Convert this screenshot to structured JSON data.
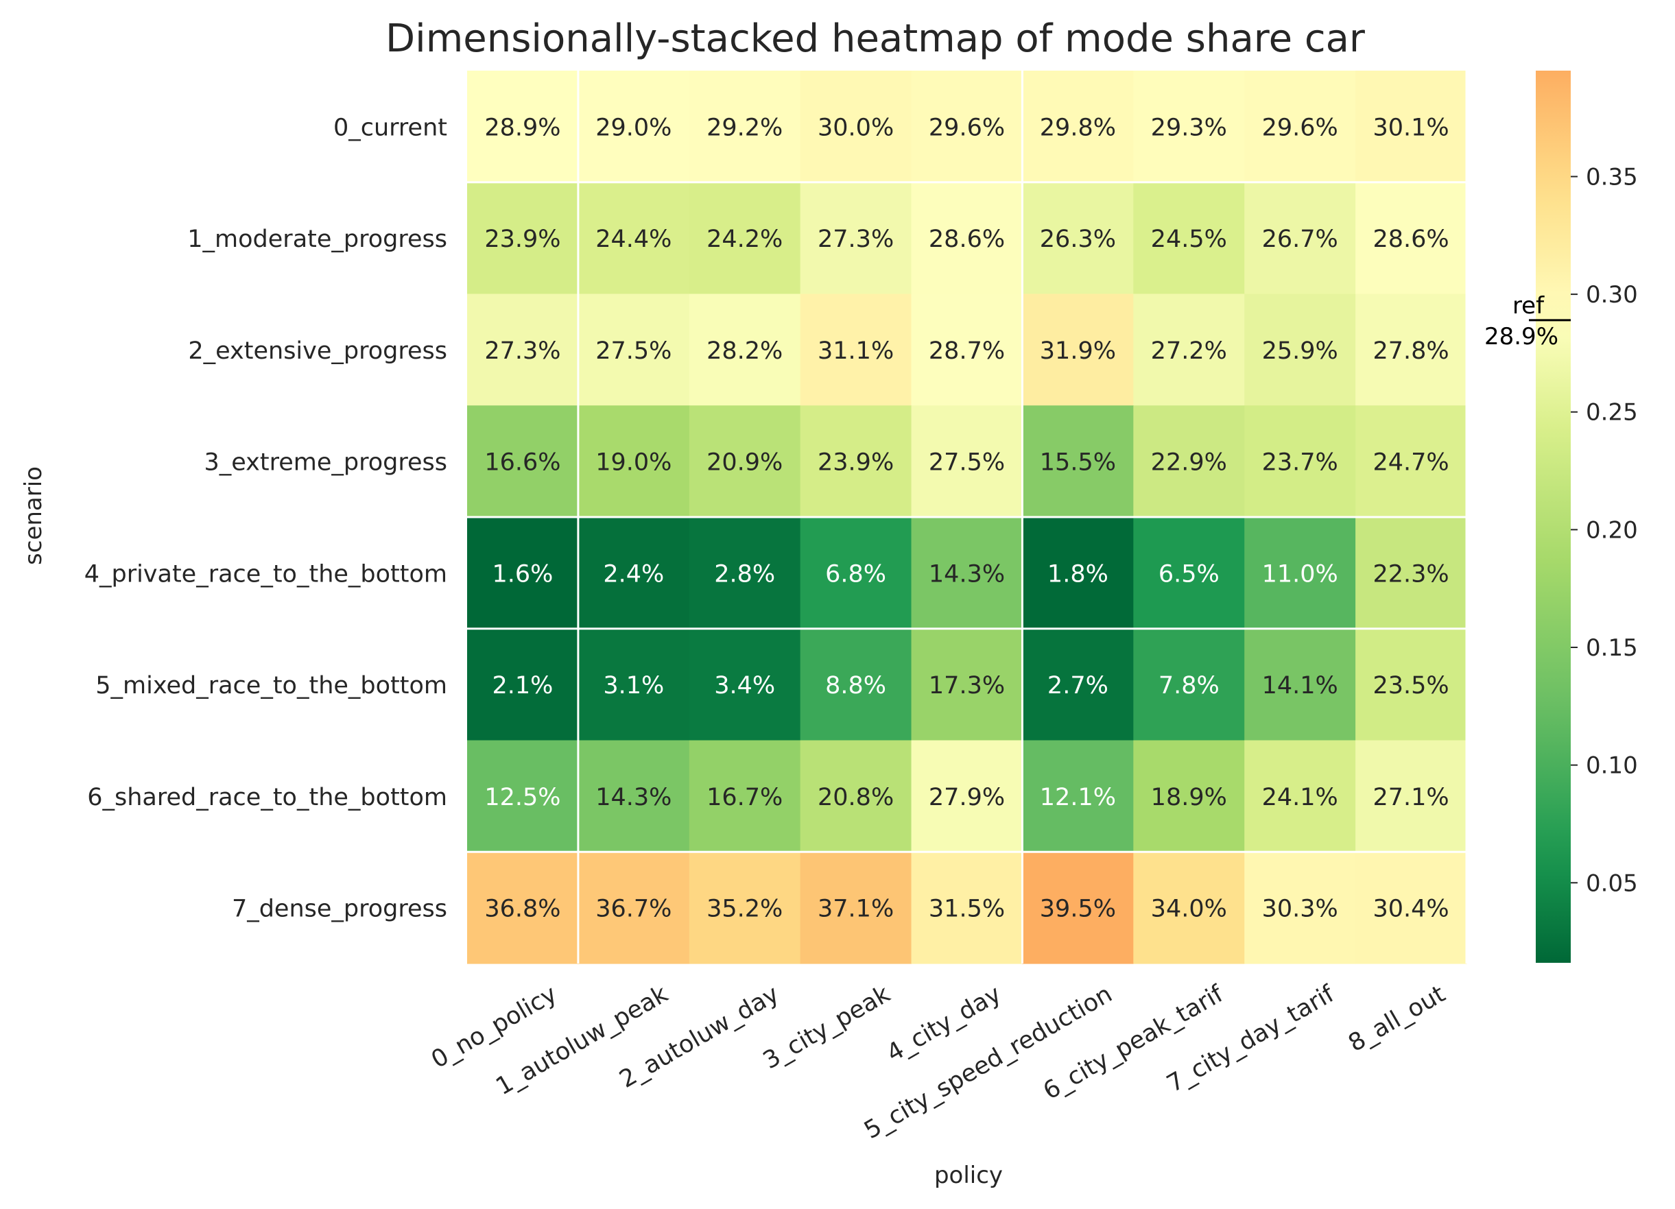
{
  "chart_data": {
    "type": "heatmap",
    "title": "Dimensionally-stacked heatmap of mode share car",
    "xlabel": "policy",
    "ylabel": "scenario",
    "x_categories": [
      "0_no_policy",
      "1_autoluw_peak",
      "2_autoluw_day",
      "3_city_peak",
      "4_city_day",
      "5_city_speed_reduction",
      "6_city_peak_tarif",
      "7_city_day_tarif",
      "8_all_out"
    ],
    "y_categories": [
      "0_current",
      "1_moderate_progress",
      "2_extensive_progress",
      "3_extreme_progress",
      "4_private_race_to_the_bottom",
      "5_mixed_race_to_the_bottom",
      "6_shared_race_to_the_bottom",
      "7_dense_progress"
    ],
    "values": [
      [
        0.289,
        0.29,
        0.292,
        0.3,
        0.296,
        0.298,
        0.293,
        0.296,
        0.301
      ],
      [
        0.239,
        0.244,
        0.242,
        0.273,
        0.286,
        0.263,
        0.245,
        0.267,
        0.286
      ],
      [
        0.273,
        0.275,
        0.282,
        0.311,
        0.287,
        0.319,
        0.272,
        0.259,
        0.278
      ],
      [
        0.166,
        0.19,
        0.209,
        0.239,
        0.275,
        0.155,
        0.229,
        0.237,
        0.247
      ],
      [
        0.016,
        0.024,
        0.028,
        0.068,
        0.143,
        0.018,
        0.065,
        0.11,
        0.223
      ],
      [
        0.021,
        0.031,
        0.034,
        0.088,
        0.173,
        0.027,
        0.078,
        0.141,
        0.235
      ],
      [
        0.125,
        0.143,
        0.167,
        0.208,
        0.279,
        0.121,
        0.189,
        0.241,
        0.271
      ],
      [
        0.368,
        0.367,
        0.352,
        0.371,
        0.315,
        0.395,
        0.34,
        0.303,
        0.304
      ]
    ],
    "cell_labels": [
      [
        "28.9%",
        "29.0%",
        "29.2%",
        "30.0%",
        "29.6%",
        "29.8%",
        "29.3%",
        "29.6%",
        "30.1%"
      ],
      [
        "23.9%",
        "24.4%",
        "24.2%",
        "27.3%",
        "28.6%",
        "26.3%",
        "24.5%",
        "26.7%",
        "28.6%"
      ],
      [
        "27.3%",
        "27.5%",
        "28.2%",
        "31.1%",
        "28.7%",
        "31.9%",
        "27.2%",
        "25.9%",
        "27.8%"
      ],
      [
        "16.6%",
        "19.0%",
        "20.9%",
        "23.9%",
        "27.5%",
        "15.5%",
        "22.9%",
        "23.7%",
        "24.7%"
      ],
      [
        "1.6%",
        "2.4%",
        "2.8%",
        "6.8%",
        "14.3%",
        "1.8%",
        "6.5%",
        "11.0%",
        "22.3%"
      ],
      [
        "2.1%",
        "3.1%",
        "3.4%",
        "8.8%",
        "17.3%",
        "2.7%",
        "7.8%",
        "14.1%",
        "23.5%"
      ],
      [
        "12.5%",
        "14.3%",
        "16.7%",
        "20.8%",
        "27.9%",
        "12.1%",
        "18.9%",
        "24.1%",
        "27.1%"
      ],
      [
        "36.8%",
        "36.7%",
        "35.2%",
        "37.1%",
        "31.5%",
        "39.5%",
        "34.0%",
        "30.3%",
        "30.4%"
      ]
    ],
    "vertical_group_separators_after_columns": [
      0,
      4,
      8
    ],
    "horizontal_group_separators_after_rows": [
      0,
      3,
      4,
      6
    ],
    "colorbar": {
      "colormap": "RdYlGn_r (truncated)",
      "vmin": 0.016,
      "vmax": 0.395,
      "ticks": [
        0.05,
        0.1,
        0.15,
        0.2,
        0.25,
        0.3,
        0.35
      ],
      "tick_labels": [
        "0.05",
        "0.10",
        "0.15",
        "0.20",
        "0.25",
        "0.30",
        "0.35"
      ],
      "reference": {
        "value": 0.289,
        "label_line1": "ref",
        "label_line2": "28.9%"
      }
    },
    "grid": false
  },
  "colors": {
    "background": "#ffffff",
    "text": "#262626",
    "separator": "#ffffff",
    "cell_text_dark": "#262626",
    "cell_text_light": "#ffffff"
  }
}
